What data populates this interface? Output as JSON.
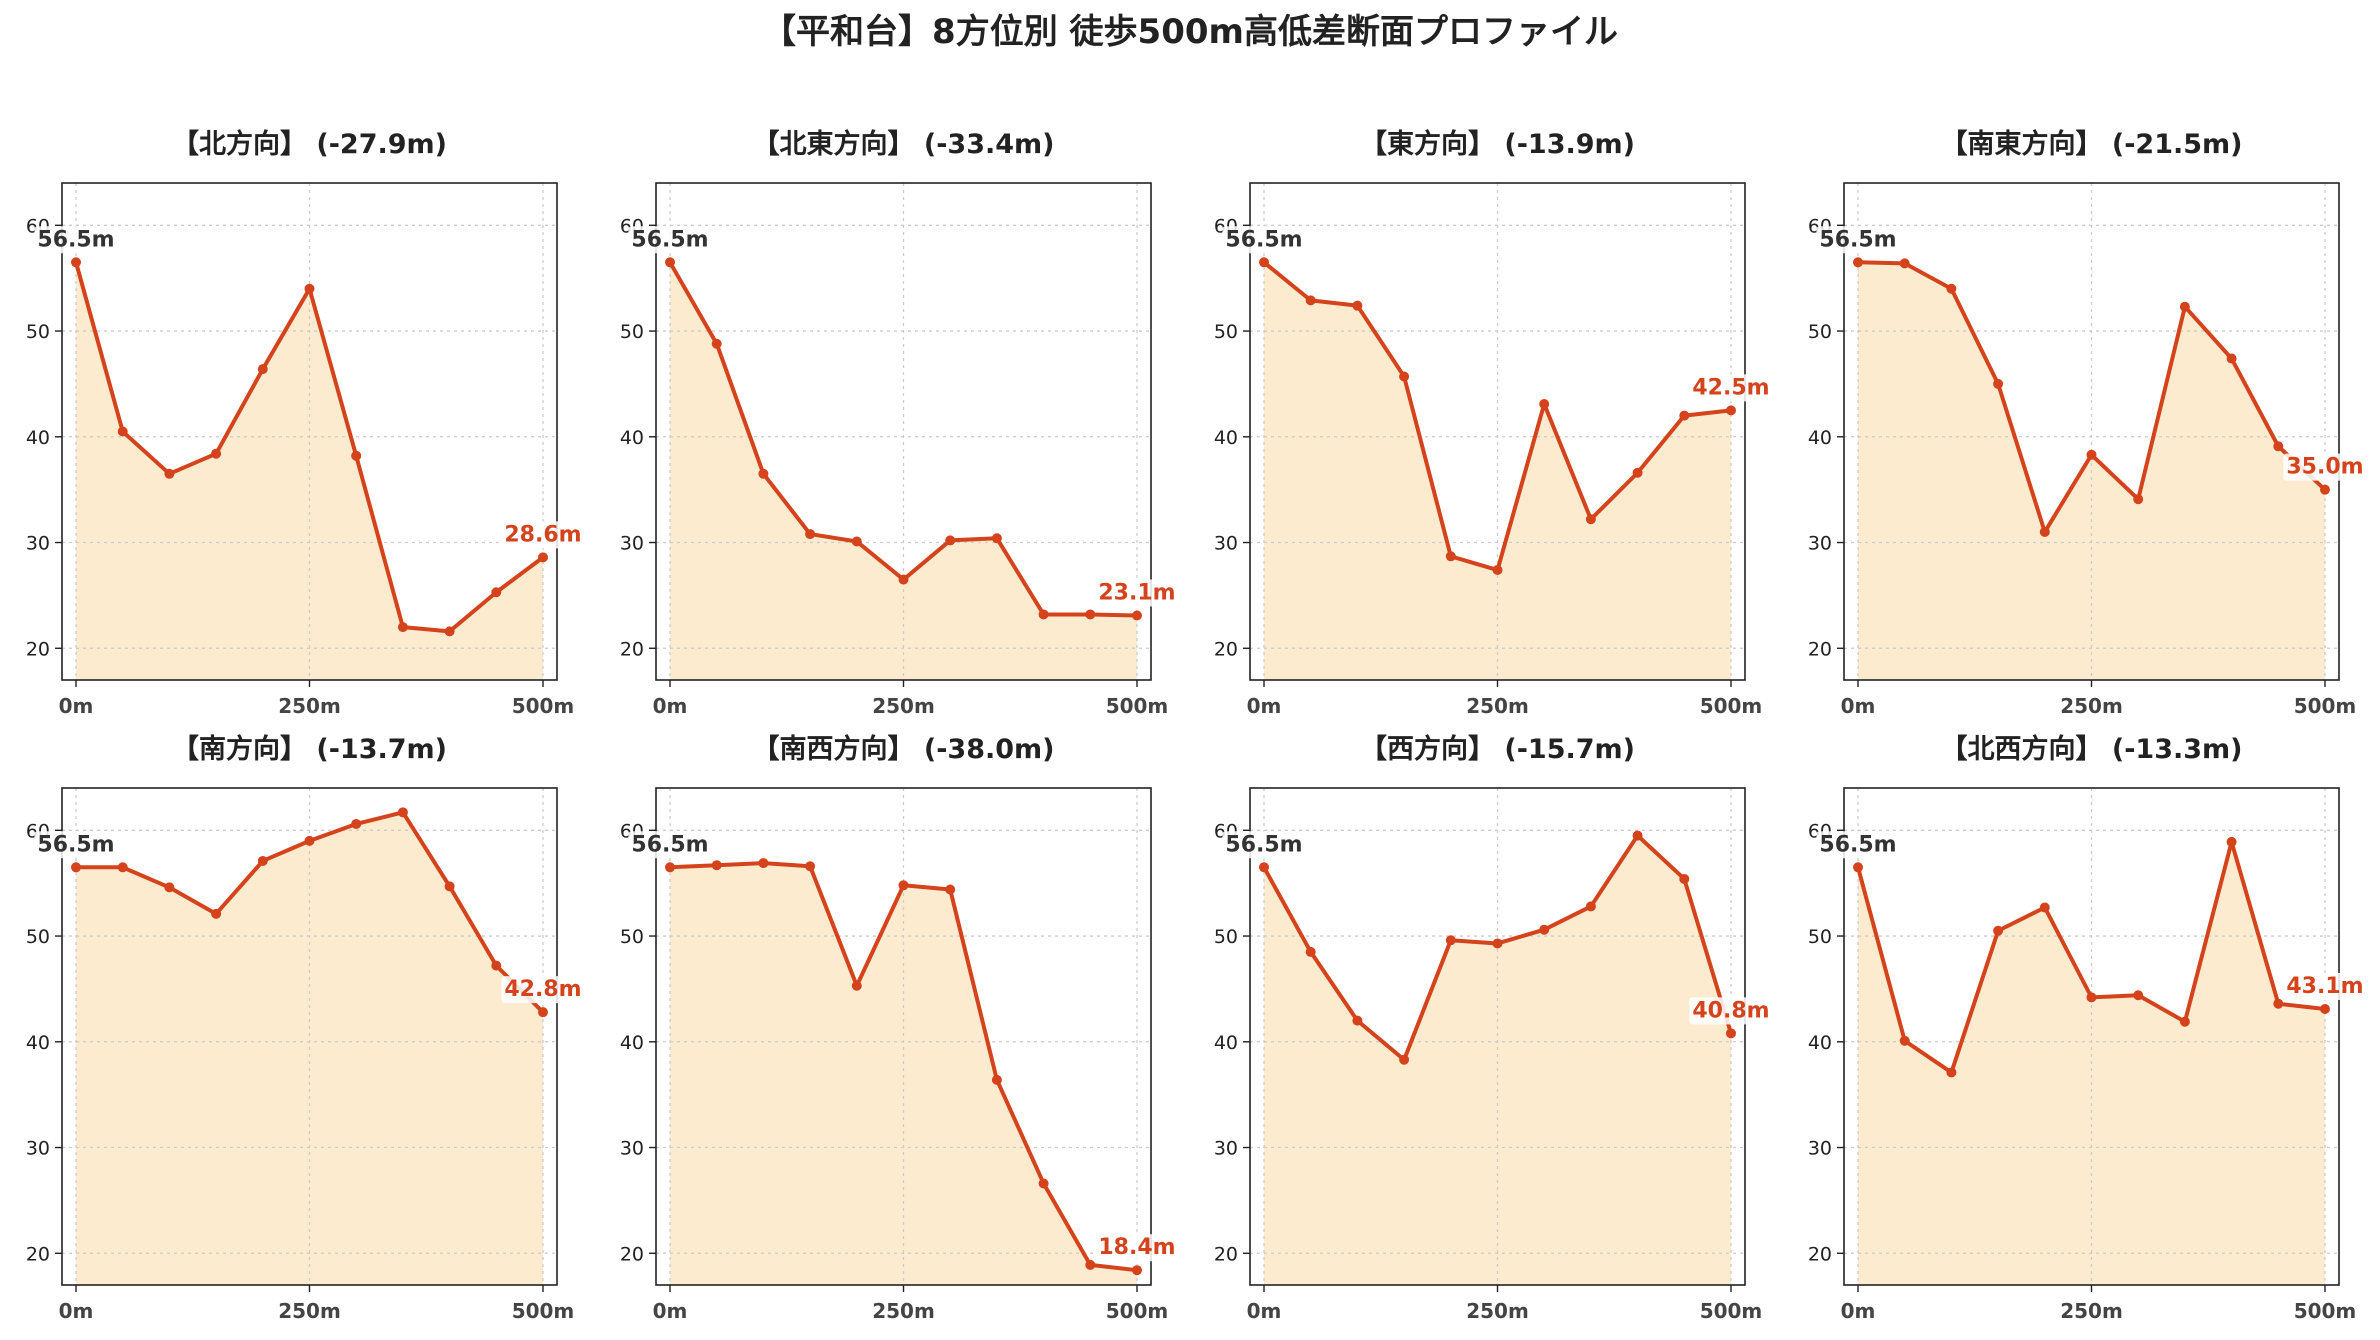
{
  "title": "【平和台】8方位別 徒歩500m高低差断面プロファイル",
  "colors": {
    "line": "#d4431b",
    "fill": "#fdebd0",
    "grid": "#cccccc",
    "axis": "#222222",
    "start_label": "#333333",
    "end_label": "#d4431b"
  },
  "chart_data": [
    {
      "type": "area",
      "title": "【北方向】 (-27.9m)",
      "x": [
        0,
        50,
        100,
        150,
        200,
        250,
        300,
        350,
        400,
        450,
        500
      ],
      "values": [
        56.5,
        40.5,
        36.5,
        38.4,
        46.4,
        54.0,
        38.2,
        22.0,
        21.6,
        25.3,
        28.6
      ],
      "start_label": "56.5m",
      "end_label": "28.6m",
      "xticks": [
        "0m",
        "250m",
        "500m"
      ],
      "yticks": [
        "20",
        "30",
        "40",
        "50",
        "60"
      ],
      "ylim": [
        17,
        64
      ],
      "xlim": [
        -15,
        515
      ],
      "grid": true
    },
    {
      "type": "area",
      "title": "【北東方向】 (-33.4m)",
      "x": [
        0,
        50,
        100,
        150,
        200,
        250,
        300,
        350,
        400,
        450,
        500
      ],
      "values": [
        56.5,
        48.8,
        36.5,
        30.8,
        30.1,
        26.5,
        30.2,
        30.4,
        23.2,
        23.2,
        23.1
      ],
      "start_label": "56.5m",
      "end_label": "23.1m",
      "xticks": [
        "0m",
        "250m",
        "500m"
      ],
      "yticks": [
        "20",
        "30",
        "40",
        "50",
        "60"
      ],
      "ylim": [
        17,
        64
      ],
      "xlim": [
        -15,
        515
      ],
      "grid": true
    },
    {
      "type": "area",
      "title": "【東方向】 (-13.9m)",
      "x": [
        0,
        50,
        100,
        150,
        200,
        250,
        300,
        350,
        400,
        450,
        500
      ],
      "values": [
        56.5,
        52.9,
        52.4,
        45.7,
        28.7,
        27.4,
        43.1,
        32.2,
        36.6,
        42.0,
        42.5
      ],
      "start_label": "56.5m",
      "end_label": "42.5m",
      "xticks": [
        "0m",
        "250m",
        "500m"
      ],
      "yticks": [
        "20",
        "30",
        "40",
        "50",
        "60"
      ],
      "ylim": [
        17,
        64
      ],
      "xlim": [
        -15,
        515
      ],
      "grid": true
    },
    {
      "type": "area",
      "title": "【南東方向】 (-21.5m)",
      "x": [
        0,
        50,
        100,
        150,
        200,
        250,
        300,
        350,
        400,
        450,
        500
      ],
      "values": [
        56.5,
        56.4,
        54.0,
        45.0,
        31.0,
        38.3,
        34.1,
        52.3,
        47.4,
        39.1,
        35.0
      ],
      "start_label": "56.5m",
      "end_label": "35.0m",
      "xticks": [
        "0m",
        "250m",
        "500m"
      ],
      "yticks": [
        "20",
        "30",
        "40",
        "50",
        "60"
      ],
      "ylim": [
        17,
        64
      ],
      "xlim": [
        -15,
        515
      ],
      "grid": true
    },
    {
      "type": "area",
      "title": "【南方向】 (-13.7m)",
      "x": [
        0,
        50,
        100,
        150,
        200,
        250,
        300,
        350,
        400,
        450,
        500
      ],
      "values": [
        56.5,
        56.5,
        54.6,
        52.1,
        57.1,
        59.0,
        60.6,
        61.7,
        54.7,
        47.2,
        42.8
      ],
      "start_label": "56.5m",
      "end_label": "42.8m",
      "xticks": [
        "0m",
        "250m",
        "500m"
      ],
      "yticks": [
        "20",
        "30",
        "40",
        "50",
        "60"
      ],
      "ylim": [
        17,
        64
      ],
      "xlim": [
        -15,
        515
      ],
      "grid": true
    },
    {
      "type": "area",
      "title": "【南西方向】 (-38.0m)",
      "x": [
        0,
        50,
        100,
        150,
        200,
        250,
        300,
        350,
        400,
        450,
        500
      ],
      "values": [
        56.5,
        56.7,
        56.9,
        56.6,
        45.3,
        54.8,
        54.4,
        36.4,
        26.6,
        18.9,
        18.4
      ],
      "start_label": "56.5m",
      "end_label": "18.4m",
      "xticks": [
        "0m",
        "250m",
        "500m"
      ],
      "yticks": [
        "20",
        "30",
        "40",
        "50",
        "60"
      ],
      "ylim": [
        17,
        64
      ],
      "xlim": [
        -15,
        515
      ],
      "grid": true
    },
    {
      "type": "area",
      "title": "【西方向】 (-15.7m)",
      "x": [
        0,
        50,
        100,
        150,
        200,
        250,
        300,
        350,
        400,
        450,
        500
      ],
      "values": [
        56.5,
        48.5,
        42.0,
        38.3,
        49.6,
        49.3,
        50.6,
        52.8,
        59.5,
        55.4,
        40.8
      ],
      "start_label": "56.5m",
      "end_label": "40.8m",
      "xticks": [
        "0m",
        "250m",
        "500m"
      ],
      "yticks": [
        "20",
        "30",
        "40",
        "50",
        "60"
      ],
      "ylim": [
        17,
        64
      ],
      "xlim": [
        -15,
        515
      ],
      "grid": true
    },
    {
      "type": "area",
      "title": "【北西方向】 (-13.3m)",
      "x": [
        0,
        50,
        100,
        150,
        200,
        250,
        300,
        350,
        400,
        450,
        500
      ],
      "values": [
        56.5,
        40.1,
        37.1,
        50.5,
        52.7,
        44.2,
        44.4,
        41.9,
        58.9,
        43.6,
        43.1
      ],
      "start_label": "56.5m",
      "end_label": "43.1m",
      "xticks": [
        "0m",
        "250m",
        "500m"
      ],
      "yticks": [
        "20",
        "30",
        "40",
        "50",
        "60"
      ],
      "ylim": [
        17,
        64
      ],
      "xlim": [
        -15,
        515
      ],
      "grid": true
    }
  ]
}
